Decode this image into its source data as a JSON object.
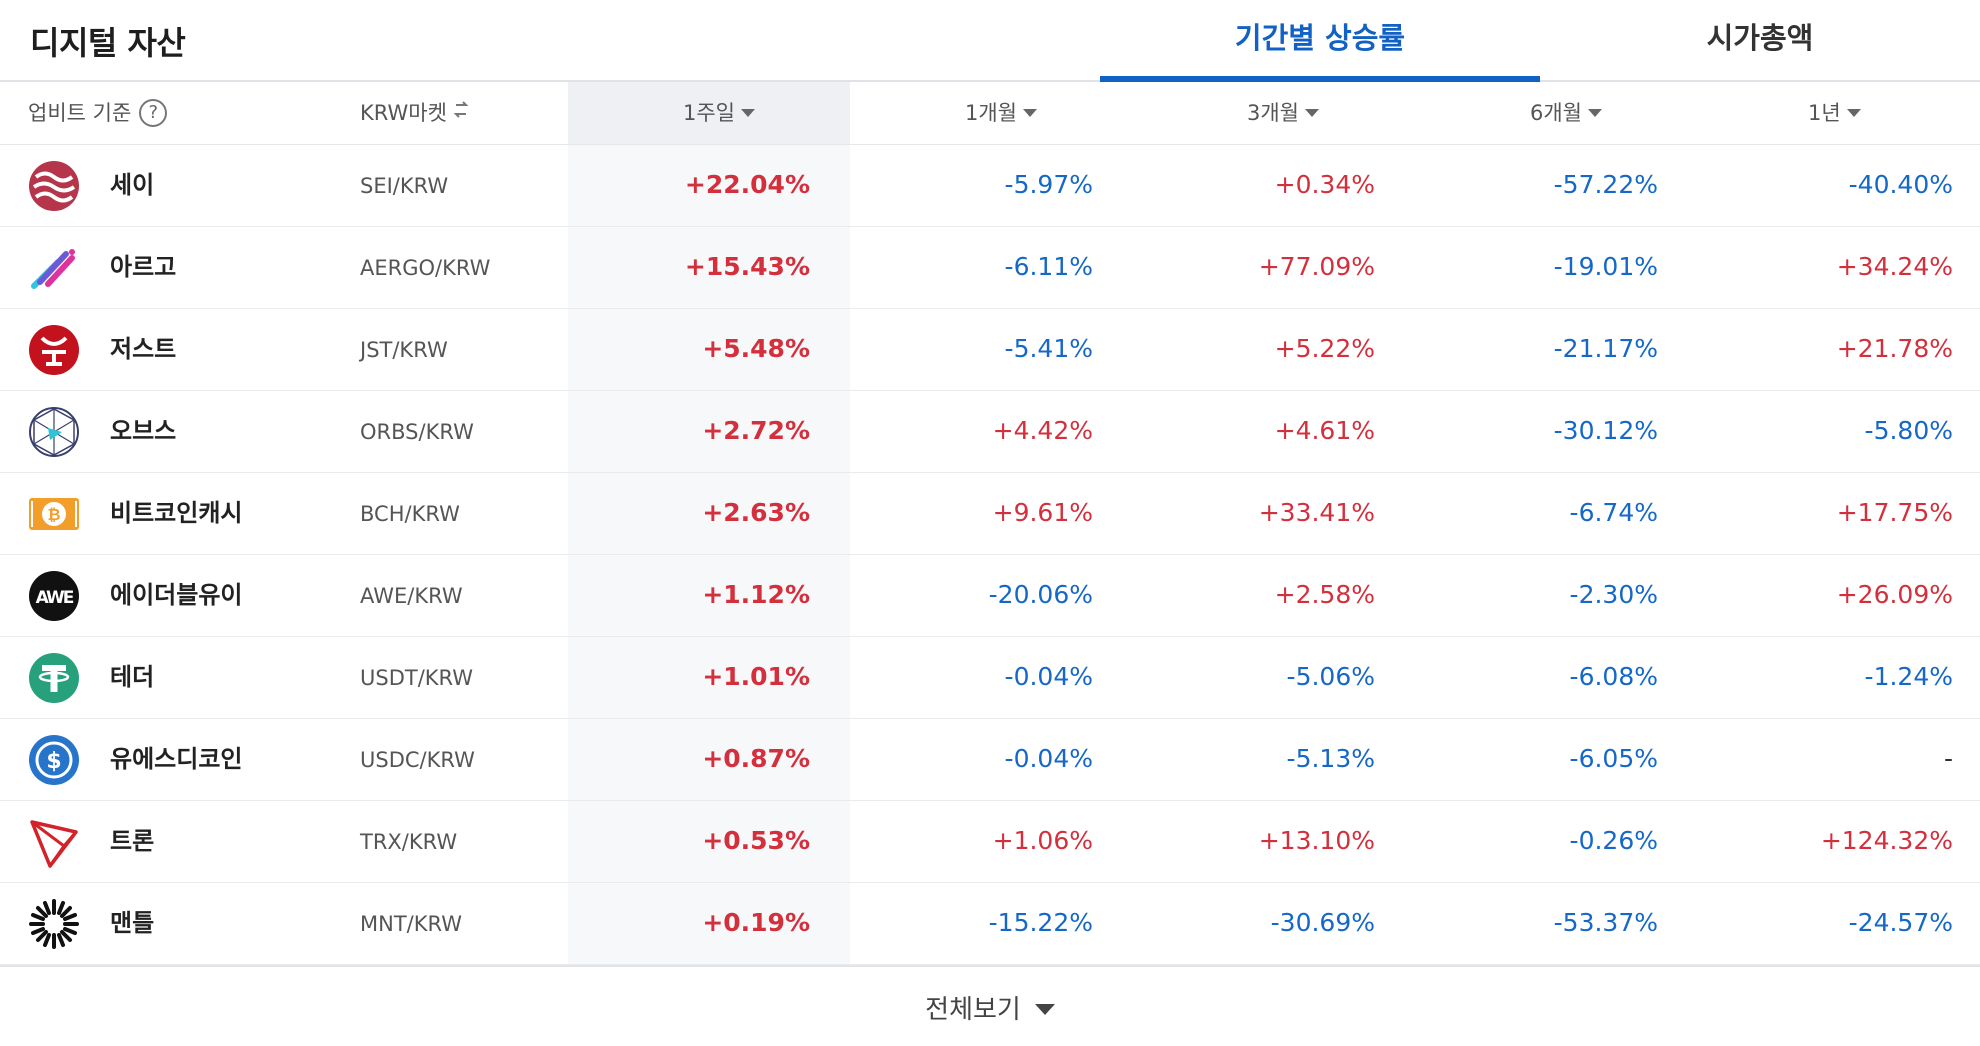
{
  "header": {
    "title": "디지털 자산",
    "tabs": [
      {
        "label": "기간별 상승률",
        "active": true
      },
      {
        "label": "시가총액",
        "active": false
      }
    ],
    "accent_color": "#1261c4"
  },
  "columns": {
    "basis": "업비트 기준",
    "market": "KRW마켓",
    "week": "1주일",
    "month1": "1개월",
    "month3": "3개월",
    "month6": "6개월",
    "year1": "1년"
  },
  "colors": {
    "up": "#d42f3c",
    "down": "#1568c8"
  },
  "rows": [
    {
      "icon": "sei-icon",
      "name": "세이",
      "market": "SEI/KRW",
      "w": "+22.04%",
      "m1": "-5.97%",
      "m3": "+0.34%",
      "m6": "-57.22%",
      "y1": "-40.40%"
    },
    {
      "icon": "aergo-icon",
      "name": "아르고",
      "market": "AERGO/KRW",
      "w": "+15.43%",
      "m1": "-6.11%",
      "m3": "+77.09%",
      "m6": "-19.01%",
      "y1": "+34.24%"
    },
    {
      "icon": "just-icon",
      "name": "저스트",
      "market": "JST/KRW",
      "w": "+5.48%",
      "m1": "-5.41%",
      "m3": "+5.22%",
      "m6": "-21.17%",
      "y1": "+21.78%"
    },
    {
      "icon": "orbs-icon",
      "name": "오브스",
      "market": "ORBS/KRW",
      "w": "+2.72%",
      "m1": "+4.42%",
      "m3": "+4.61%",
      "m6": "-30.12%",
      "y1": "-5.80%"
    },
    {
      "icon": "bitcoin-cash-icon",
      "name": "비트코인캐시",
      "market": "BCH/KRW",
      "w": "+2.63%",
      "m1": "+9.61%",
      "m3": "+33.41%",
      "m6": "-6.74%",
      "y1": "+17.75%"
    },
    {
      "icon": "awe-icon",
      "name": "에이더블유이",
      "market": "AWE/KRW",
      "w": "+1.12%",
      "m1": "-20.06%",
      "m3": "+2.58%",
      "m6": "-2.30%",
      "y1": "+26.09%"
    },
    {
      "icon": "tether-icon",
      "name": "테더",
      "market": "USDT/KRW",
      "w": "+1.01%",
      "m1": "-0.04%",
      "m3": "-5.06%",
      "m6": "-6.08%",
      "y1": "-1.24%"
    },
    {
      "icon": "usdc-icon",
      "name": "유에스디코인",
      "market": "USDC/KRW",
      "w": "+0.87%",
      "m1": "-0.04%",
      "m3": "-5.13%",
      "m6": "-6.05%",
      "y1": "-"
    },
    {
      "icon": "tron-icon",
      "name": "트론",
      "market": "TRX/KRW",
      "w": "+0.53%",
      "m1": "+1.06%",
      "m3": "+13.10%",
      "m6": "-0.26%",
      "y1": "+124.32%"
    },
    {
      "icon": "mantle-icon",
      "name": "맨틀",
      "market": "MNT/KRW",
      "w": "+0.19%",
      "m1": "-15.22%",
      "m3": "-30.69%",
      "m6": "-53.37%",
      "y1": "-24.57%"
    }
  ],
  "footer": {
    "view_all": "전체보기"
  }
}
